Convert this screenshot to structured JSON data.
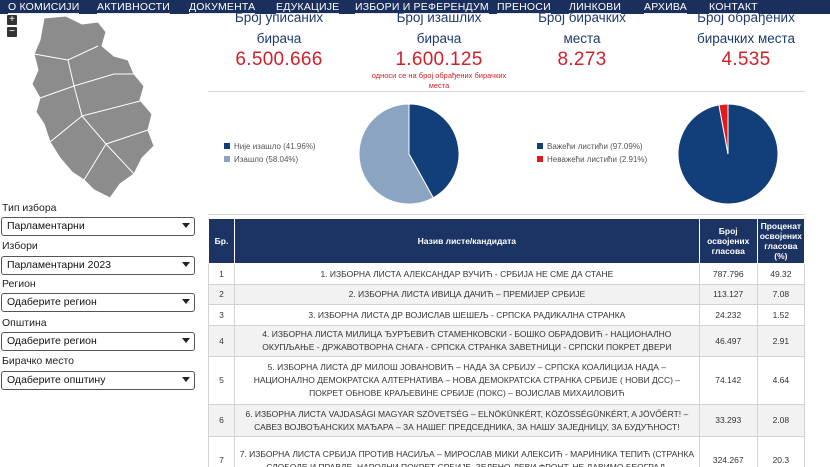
{
  "nav": {
    "items": [
      "О КОМИСИЈИ",
      "АКТИВНОСТИ",
      "ДОКУМЕНТА",
      "ЕДУКАЦИЈЕ",
      "ИЗБОРИ И РЕФЕРЕНДУМ",
      "ПРЕНОСИ",
      "ЛИНКОВИ",
      "АРХИВА",
      "КОНТАКТ"
    ]
  },
  "zoom": {
    "in": "+",
    "out": "−"
  },
  "filters": {
    "type_label": "Тип избора",
    "type_value": "Парламентарни",
    "election_label": "Избори",
    "election_value": "Парламентарни 2023",
    "region_label": "Регион",
    "region_value": "Одаберите регион",
    "municipality_label": "Општина",
    "municipality_value": "Одаберите регион",
    "station_label": "Бирачко место",
    "station_value": "Одаберите општину"
  },
  "stats": [
    {
      "label1": "Број уписаних",
      "label2": "бирача",
      "value": "6.500.666"
    },
    {
      "label1": "Број изашлих",
      "label2": "бирача",
      "value": "1.600.125",
      "note1": "односи се на број обрађених бирачких",
      "note2": "места"
    },
    {
      "label1": "Број бирачких",
      "label2": "места",
      "value": "8.273"
    },
    {
      "label1": "Број обрађених",
      "label2": "бирачких места",
      "value": "4.535"
    }
  ],
  "turnout_chart": {
    "legend": [
      {
        "label": "Није изашло (41.96%)",
        "color": "#123f7a"
      },
      {
        "label": "Изашло (58.04%)",
        "color": "#8aa4c1"
      }
    ],
    "values": [
      41.96,
      58.04
    ]
  },
  "validity_chart": {
    "legend": [
      {
        "label": "Важећи листићи (97.09%)",
        "color": "#123f7a"
      },
      {
        "label": "Неважећи листићи (2.91%)",
        "color": "#e31a1c"
      }
    ],
    "values": [
      97.09,
      2.91
    ]
  },
  "table": {
    "headers": {
      "num": "Бр.",
      "name": "Назив листе/кандидата",
      "votes": "Број освојених гласова",
      "pct": "Проценат освојених гласова (%)"
    },
    "rows": [
      {
        "num": "1",
        "name": "1. ИЗБОРНА ЛИСТА АЛЕКСАНДАР ВУЧИЋ - СРБИЈА НЕ СМЕ ДА СТАНЕ",
        "votes": "787.796",
        "pct": "49.32"
      },
      {
        "num": "2",
        "name": "2. ИЗБОРНА ЛИСТА ИВИЦА ДАЧИЋ – ПРЕМИЈЕР СРБИЈЕ",
        "votes": "113.127",
        "pct": "7.08"
      },
      {
        "num": "3",
        "name": "3. ИЗБОРНА ЛИСТА ДР ВОЈИСЛАВ ШЕШЕЉ - СРПСКА РАДИКАЛНА СТРАНКА",
        "votes": "24.232",
        "pct": "1.52"
      },
      {
        "num": "4",
        "name": "4. ИЗБОРНА ЛИСТА МИЛИЦА ЂУРЂЕВИЋ СТАМЕНКОВСКИ - БОШКО ОБРАДОВИЋ - НАЦИОНАЛНО ОКУПЉАЊЕ - ДРЖАВОТВОРНА СНАГА - СРПСКА СТРАНКА ЗАВЕТНИЦИ - СРПСКИ ПОКРЕТ ДВЕРИ",
        "votes": "46.497",
        "pct": "2.91"
      },
      {
        "num": "5",
        "name": "5. ИЗБОРНА ЛИСТА ДР МИЛОШ ЈОВАНОВИЋ – НАДА ЗА СРБИЈУ – СРПСКА КОАЛИЦИЈА НАДА – НАЦИОНАЛНО ДЕМОКРАТСКА АЛТЕРНАТИВА – НОВА ДЕМОКРАТСКА СТРАНКА СРБИЈЕ ( НОВИ ДСС) – ПОКРЕТ ОБНОВЕ КРАЉЕВИНЕ СРБИЈЕ (ПОКС) – ВОЈИСЛАВ МИХАИЛОВИЋ",
        "votes": "74.142",
        "pct": "4.64"
      },
      {
        "num": "6",
        "name": "6. ИЗБОРНА ЛИСТА VAJDASÁGI MAGYAR SZÖVETSÉG – ELNÖKÜNKÉRT, KÖZÖSSÉGÜNKÉRT, A JÖVŐÉRT! – САВЕЗ ВОЈВОЂАНСКИХ МАЂАРА – ЗА НАШЕГ ПРЕДСЕДНИКА, ЗА НАШУ ЗАЈЕДНИЦУ, ЗА БУДУЋНОСТ!",
        "votes": "33.293",
        "pct": "2.08"
      },
      {
        "num": "7",
        "name": "7. ИЗБОРНА ЛИСТА СРБИЈА ПРОТИВ НАСИЉА – МИРОСЛАВ МИКИ АЛЕКСИЋ - МАРИНИКА ТЕПИЋ (СТРАНКА СЛОБОДЕ И ПРАВДЕ, НАРОДНИ ПОКРЕТ СРБИЈЕ, ЗЕЛЕНО-ЛЕВИ ФРОНТ, НЕ ДАВИМО БЕОГРАД,",
        "votes": "324.267",
        "pct": "20.3"
      }
    ]
  }
}
